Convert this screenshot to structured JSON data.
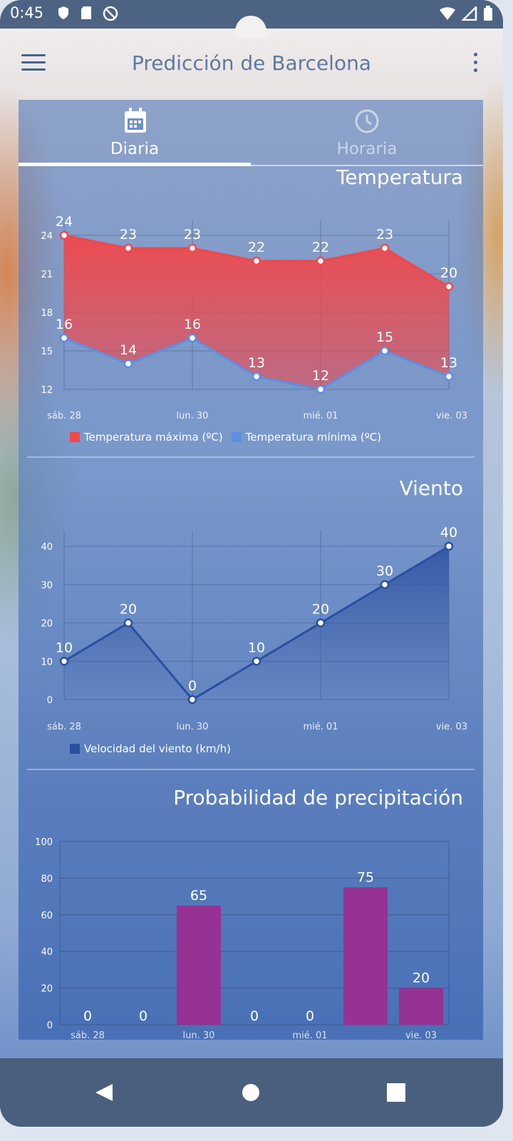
{
  "status_bar": {
    "time": "0:45",
    "icons": [
      "shield-icon",
      "sim-card-icon",
      "no-disturb-icon"
    ],
    "right_icons": [
      "wifi-icon",
      "signal-icon",
      "battery-icon"
    ]
  },
  "app_bar": {
    "title": "Predicción de Barcelona",
    "menu_icon": "hamburger-menu-icon",
    "more_icon": "more-vert-icon"
  },
  "tabs": [
    {
      "label": "Diaria",
      "icon": "calendar-icon",
      "selected": true
    },
    {
      "label": "Horaria",
      "icon": "clock-icon",
      "selected": false
    }
  ],
  "sections": {
    "temperature": {
      "title": "Temperatura"
    },
    "wind": {
      "title": "Viento"
    },
    "precip": {
      "title": "Probabilidad de precipitación"
    }
  },
  "colors": {
    "max": "#f1474a",
    "min": "#5b8fe3",
    "wind": "#2b4fa0",
    "precip": "#963293"
  },
  "chart_data": [
    {
      "type": "line",
      "title": "Temperatura",
      "x_ticks": [
        "sáb. 28",
        "lun. 30",
        "mié. 01",
        "vie. 03"
      ],
      "y_ticks": [
        12,
        15,
        18,
        21,
        24
      ],
      "ylim": [
        12,
        24
      ],
      "series": [
        {
          "name": "Temperatura máxima (ºC)",
          "values": [
            24,
            23,
            23,
            22,
            22,
            23,
            20
          ]
        },
        {
          "name": "Temperatura mínima (ºC)",
          "values": [
            16,
            14,
            16,
            13,
            12,
            15,
            13
          ]
        }
      ]
    },
    {
      "type": "line",
      "title": "Viento",
      "x_ticks": [
        "sáb. 28",
        "lun. 30",
        "mié. 01",
        "vie. 03"
      ],
      "y_ticks": [
        0,
        10,
        20,
        30,
        40
      ],
      "ylim": [
        0,
        40
      ],
      "series": [
        {
          "name": "Velocidad del viento (km/h)",
          "values": [
            10,
            20,
            0,
            10,
            20,
            30,
            40
          ]
        }
      ]
    },
    {
      "type": "bar",
      "title": "Probabilidad de precipitación",
      "x_ticks": [
        "sáb. 28",
        "lun. 30",
        "mié. 01",
        "vie. 03"
      ],
      "y_ticks": [
        0,
        20,
        40,
        60,
        80,
        100
      ],
      "ylim": [
        0,
        100
      ],
      "values": [
        0,
        0,
        65,
        0,
        0,
        75,
        20
      ]
    }
  ],
  "nav_bar": {
    "buttons": [
      "back-icon",
      "home-icon",
      "recents-icon"
    ]
  }
}
